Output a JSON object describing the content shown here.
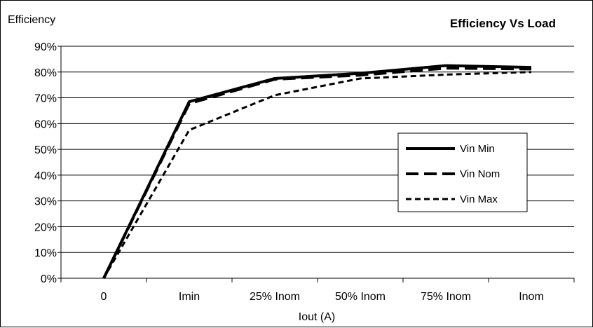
{
  "chart_data": {
    "type": "line",
    "title": "Efficiency Vs Load",
    "ylabel": "Efficiency",
    "xlabel": "Iout (A)",
    "categories": [
      "0",
      "Imin",
      "25% Inom",
      "50% Inom",
      "75% Inom",
      "Inom"
    ],
    "ylim": [
      0,
      90
    ],
    "yticks": [
      "0%",
      "10%",
      "20%",
      "30%",
      "40%",
      "50%",
      "60%",
      "70%",
      "80%",
      "90%"
    ],
    "grid": "horizontal",
    "legend_position": "right",
    "series": [
      {
        "name": "Vin Min",
        "style": "solid",
        "values": [
          0,
          68.5,
          77.5,
          79.5,
          82.5,
          81.8
        ]
      },
      {
        "name": "Vin Nom",
        "style": "long-dash",
        "values": [
          0,
          67.8,
          77.2,
          78.8,
          81.5,
          81.2
        ]
      },
      {
        "name": "Vin Max",
        "style": "short-dash",
        "values": [
          0,
          57.5,
          71,
          77.5,
          79,
          80
        ]
      }
    ]
  }
}
